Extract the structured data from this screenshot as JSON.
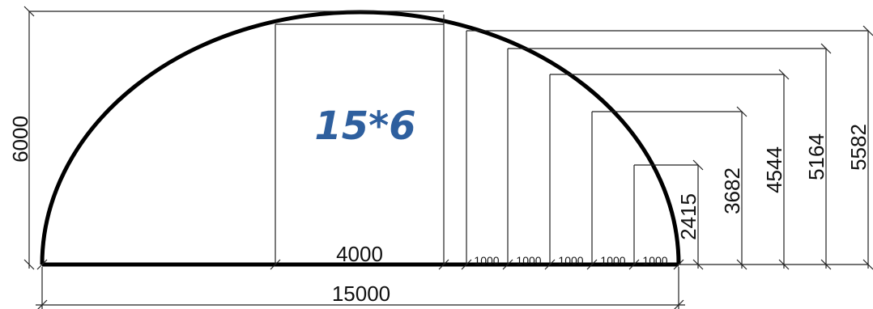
{
  "title": "15*6",
  "colors": {
    "outline": "#000000",
    "dimension_lines": "#111111",
    "title": "#2e5f9e"
  },
  "dimensions": {
    "total_width": "15000",
    "total_height": "6000",
    "center_span": "4000",
    "step_spans": [
      "1000",
      "1000",
      "1000",
      "1000",
      "1000"
    ],
    "step_heights": [
      "2415",
      "3682",
      "4544",
      "5164",
      "5582"
    ]
  }
}
